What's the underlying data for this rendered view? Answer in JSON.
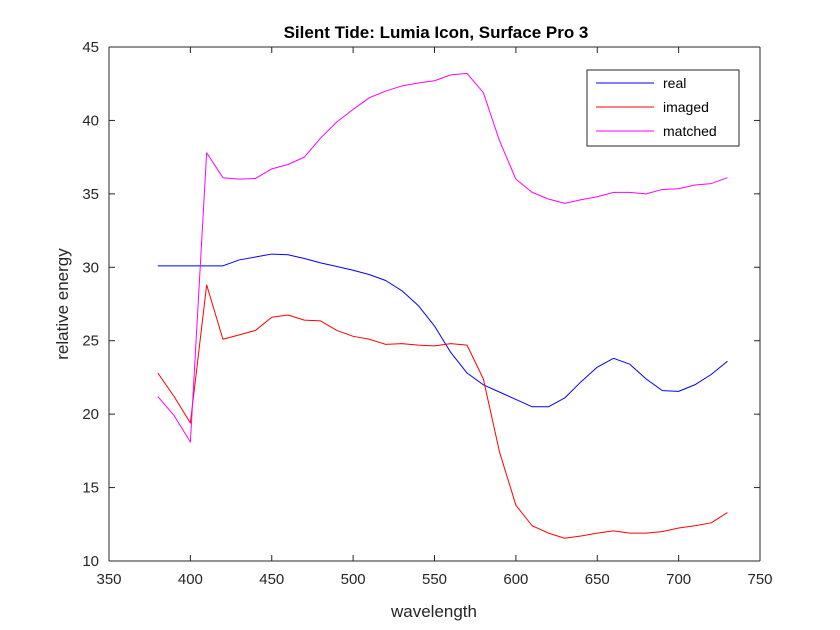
{
  "chart_data": {
    "type": "line",
    "title": "Silent Tide: Lumia Icon, Surface Pro 3",
    "xlabel": "wavelength",
    "ylabel": "relative energy",
    "xlim": [
      350,
      750
    ],
    "ylim": [
      10,
      45
    ],
    "xticks": [
      "350",
      "400",
      "450",
      "500",
      "550",
      "600",
      "650",
      "700",
      "750"
    ],
    "yticks": [
      "10",
      "15",
      "20",
      "25",
      "30",
      "35",
      "40",
      "45"
    ],
    "grid": false,
    "legend_position": "top-right",
    "x": [
      380,
      390,
      400,
      410,
      420,
      430,
      440,
      450,
      460,
      470,
      480,
      490,
      500,
      510,
      520,
      530,
      540,
      550,
      560,
      570,
      580,
      590,
      600,
      610,
      620,
      630,
      640,
      650,
      660,
      670,
      680,
      690,
      700,
      710,
      720,
      730
    ],
    "series": [
      {
        "name": "real",
        "color": "#0000ff",
        "values": [
          30.1,
          30.1,
          30.1,
          30.1,
          30.1,
          30.5,
          30.7,
          30.9,
          30.85,
          30.6,
          30.3,
          30.05,
          29.8,
          29.5,
          29.1,
          28.4,
          27.4,
          26.0,
          24.2,
          22.8,
          22.0,
          21.5,
          21.0,
          20.5,
          20.5,
          21.1,
          22.2,
          23.2,
          23.8,
          23.4,
          22.4,
          21.6,
          21.55,
          22.0,
          22.7,
          23.6
        ]
      },
      {
        "name": "imaged",
        "color": "#ff0000",
        "values": [
          22.8,
          21.2,
          19.4,
          28.8,
          25.1,
          25.4,
          25.7,
          26.6,
          26.75,
          26.4,
          26.35,
          25.7,
          25.3,
          25.1,
          24.75,
          24.8,
          24.7,
          24.65,
          24.8,
          24.7,
          22.4,
          17.4,
          13.8,
          12.4,
          11.9,
          11.55,
          11.7,
          11.9,
          12.05,
          11.9,
          11.9,
          12.0,
          12.25,
          12.4,
          12.6,
          13.3
        ]
      },
      {
        "name": "matched",
        "color": "#ff00ff",
        "values": [
          21.2,
          19.9,
          18.1,
          37.8,
          36.1,
          36.0,
          36.05,
          36.7,
          37.0,
          37.5,
          38.8,
          39.9,
          40.75,
          41.55,
          42.0,
          42.35,
          42.55,
          42.7,
          43.1,
          43.2,
          41.9,
          38.6,
          36.0,
          35.1,
          34.65,
          34.35,
          34.6,
          34.8,
          35.1,
          35.1,
          35.0,
          35.3,
          35.35,
          35.6,
          35.7,
          36.1
        ]
      }
    ]
  }
}
